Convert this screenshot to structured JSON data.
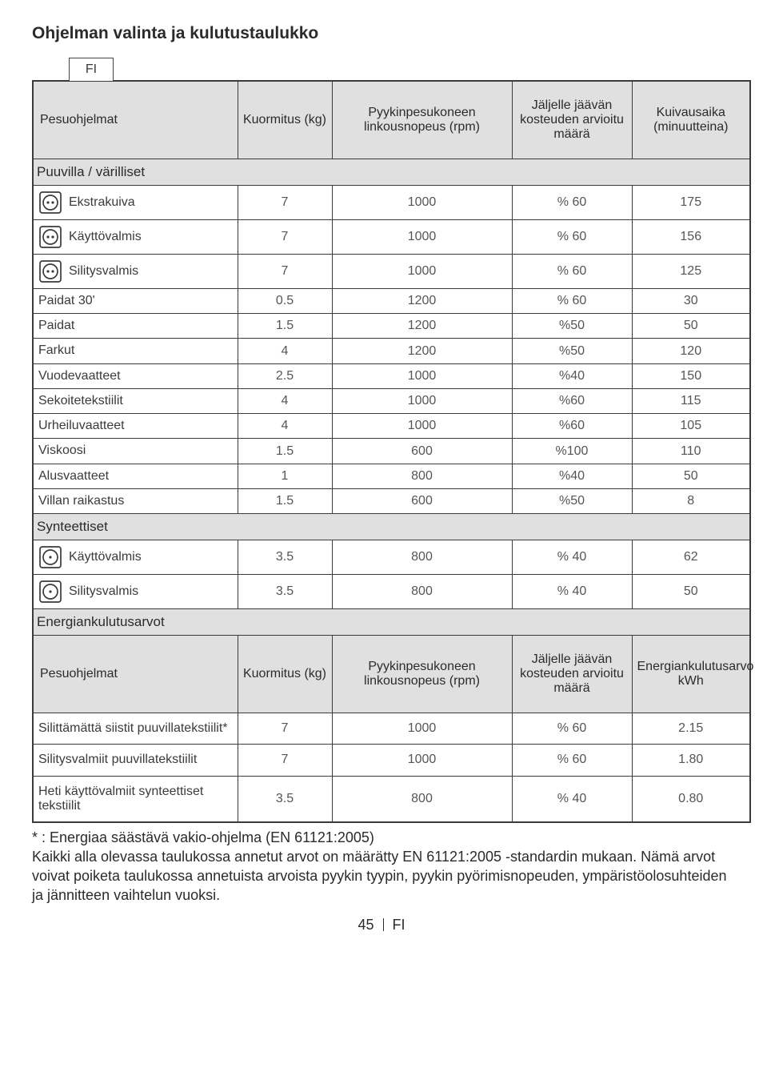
{
  "title": "Ohjelman valinta ja kulutustaulukko",
  "tab": "FI",
  "headers1": {
    "c1": "Pesuohjelmat",
    "c2": "Kuormitus (kg)",
    "c3": "Pyykinpesukoneen linkousnopeus (rpm)",
    "c4": "Jäljelle jäävän kosteuden arvioitu määrä",
    "c5": "Kuivausaika (minuutteina)"
  },
  "section1": "Puuvilla / värilliset",
  "rows1": [
    {
      "icon": "dots2",
      "label": "Ekstrakuiva",
      "kg": "7",
      "rpm": "1000",
      "moist": "% 60",
      "time": "175"
    },
    {
      "icon": "dots2",
      "label": "Käyttövalmis",
      "kg": "7",
      "rpm": "1000",
      "moist": "% 60",
      "time": "156"
    },
    {
      "icon": "dots2",
      "label": "Silitysvalmis",
      "kg": "7",
      "rpm": "1000",
      "moist": "% 60",
      "time": "125"
    },
    {
      "icon": null,
      "label": "Paidat 30'",
      "kg": "0.5",
      "rpm": "1200",
      "moist": "% 60",
      "time": "30"
    },
    {
      "icon": null,
      "label": "Paidat",
      "kg": "1.5",
      "rpm": "1200",
      "moist": "%50",
      "time": "50"
    },
    {
      "icon": null,
      "label": "Farkut",
      "kg": "4",
      "rpm": "1200",
      "moist": "%50",
      "time": "120"
    },
    {
      "icon": null,
      "label": "Vuodevaatteet",
      "kg": "2.5",
      "rpm": "1000",
      "moist": "%40",
      "time": "150"
    },
    {
      "icon": null,
      "label": "Sekoitetekstiilit",
      "kg": "4",
      "rpm": "1000",
      "moist": "%60",
      "time": "115"
    },
    {
      "icon": null,
      "label": "Urheiluvaatteet",
      "kg": "4",
      "rpm": "1000",
      "moist": "%60",
      "time": "105"
    },
    {
      "icon": null,
      "label": "Viskoosi",
      "kg": "1.5",
      "rpm": "600",
      "moist": "%100",
      "time": "110"
    },
    {
      "icon": null,
      "label": "Alusvaatteet",
      "kg": "1",
      "rpm": "800",
      "moist": "%40",
      "time": "50"
    },
    {
      "icon": null,
      "label": "Villan raikastus",
      "kg": "1.5",
      "rpm": "600",
      "moist": "%50",
      "time": "8"
    }
  ],
  "section2": "Synteettiset",
  "rows2": [
    {
      "icon": "dot1",
      "label": "Käyttövalmis",
      "kg": "3.5",
      "rpm": "800",
      "moist": "% 40",
      "time": "62"
    },
    {
      "icon": "dot1",
      "label": "Silitysvalmis",
      "kg": "3.5",
      "rpm": "800",
      "moist": "% 40",
      "time": "50"
    }
  ],
  "section3": "Energiankulutusarvot",
  "headers2": {
    "c1": "Pesuohjelmat",
    "c2": "Kuormitus (kg)",
    "c3": "Pyykinpesukoneen linkousnopeus (rpm)",
    "c4": "Jäljelle jäävän kosteuden arvioitu määrä",
    "c5": "Energiankulutusarvo kWh"
  },
  "rows3": [
    {
      "label": "Silittämättä siistit puuvillatekstiilit*",
      "kg": "7",
      "rpm": "1000",
      "moist": "% 60",
      "kwh": "2.15"
    },
    {
      "label": "Silitysvalmiit puuvillatekstiilit",
      "kg": "7",
      "rpm": "1000",
      "moist": "% 60",
      "kwh": "1.80"
    },
    {
      "label": "Heti käyttövalmiit synteettiset tekstiilit",
      "kg": "3.5",
      "rpm": "800",
      "moist": "% 40",
      "kwh": "0.80"
    }
  ],
  "footnote_line1": "* : Energiaa säästävä vakio-ohjelma (EN 61121:2005)",
  "footnote_line2": "Kaikki alla olevassa taulukossa annetut arvot on määrätty EN 61121:2005 -standardin mukaan. Nämä arvot voivat poiketa taulukossa annetuista arvoista pyykin tyypin, pyykin pyörimisnopeuden, ympäristöolosuhteiden ja jännitteen vaihtelun vuoksi.",
  "page_number": "45",
  "page_lang": "FI"
}
